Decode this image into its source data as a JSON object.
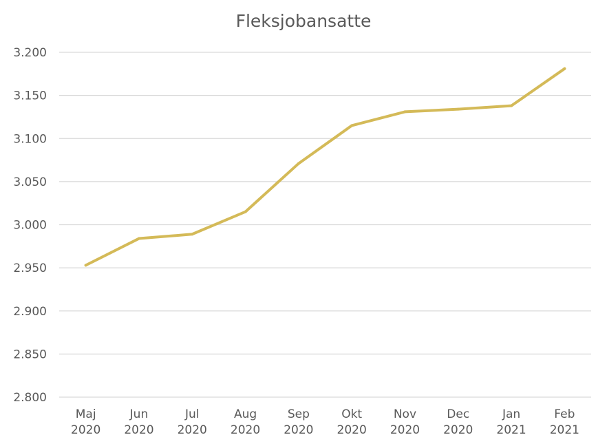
{
  "chart_data": {
    "type": "line",
    "title": "Fleksjobansatte",
    "xlabel": "",
    "ylabel": "",
    "categories": [
      [
        "Maj",
        "2020"
      ],
      [
        "Jun",
        "2020"
      ],
      [
        "Jul",
        "2020"
      ],
      [
        "Aug",
        "2020"
      ],
      [
        "Sep",
        "2020"
      ],
      [
        "Okt",
        "2020"
      ],
      [
        "Nov",
        "2020"
      ],
      [
        "Dec",
        "2020"
      ],
      [
        "Jan",
        "2021"
      ],
      [
        "Feb",
        "2021"
      ]
    ],
    "series": [
      {
        "values": [
          2953,
          2984,
          2989,
          3015,
          3071,
          3115,
          3131,
          3134,
          3138,
          3181
        ]
      }
    ],
    "ylim": [
      2800,
      3200
    ],
    "yticks": [
      2800,
      2850,
      2900,
      2950,
      3000,
      3050,
      3100,
      3150,
      3200
    ],
    "ytick_labels": [
      "2.800",
      "2.850",
      "2.900",
      "2.950",
      "3.000",
      "3.050",
      "3.100",
      "3.150",
      "3.200"
    ],
    "grid": true,
    "legend": "none",
    "colors": {
      "line": "#D4BA58",
      "grid": "#D9D9D9",
      "text": "#595959"
    }
  }
}
